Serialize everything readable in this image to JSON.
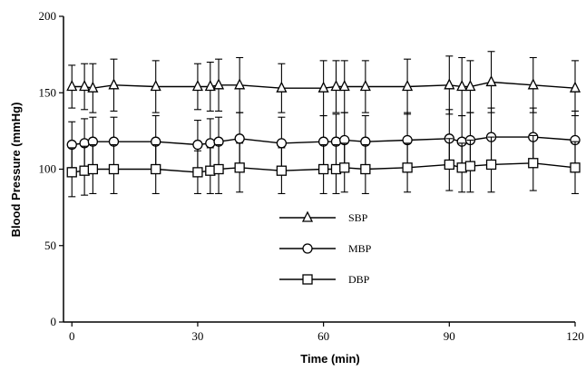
{
  "chart_data": {
    "type": "line",
    "xlabel": "Time (min)",
    "ylabel": "Blood Pressure (mmHg)",
    "xlim": [
      -2,
      120
    ],
    "ylim": [
      0,
      200
    ],
    "xticks": [
      0,
      30,
      60,
      90,
      120
    ],
    "yticks": [
      0,
      50,
      100,
      150,
      200
    ],
    "legend_position": "center",
    "series": [
      {
        "name": "SBP",
        "marker": "triangle",
        "x": [
          0,
          3,
          5,
          10,
          20,
          30,
          33,
          35,
          40,
          50,
          60,
          63,
          65,
          70,
          80,
          90,
          93,
          95,
          100,
          110,
          120
        ],
        "y": [
          154,
          154,
          153,
          155,
          154,
          154,
          154,
          155,
          155,
          153,
          153,
          154,
          154,
          154,
          154,
          155,
          154,
          154,
          157,
          155,
          153
        ],
        "err": [
          14,
          15,
          16,
          17,
          17,
          15,
          16,
          17,
          18,
          16,
          18,
          17,
          17,
          17,
          18,
          19,
          19,
          17,
          20,
          18,
          18
        ]
      },
      {
        "name": "MBP",
        "marker": "circle",
        "x": [
          0,
          3,
          5,
          10,
          20,
          30,
          33,
          35,
          40,
          50,
          60,
          63,
          65,
          70,
          80,
          90,
          93,
          95,
          100,
          110,
          120
        ],
        "y": [
          116,
          117,
          118,
          118,
          118,
          116,
          117,
          118,
          120,
          117,
          118,
          118,
          119,
          118,
          119,
          120,
          118,
          119,
          121,
          121,
          119
        ],
        "err": [
          15,
          16,
          16,
          16,
          17,
          16,
          16,
          16,
          17,
          17,
          17,
          18,
          18,
          17,
          18,
          19,
          17,
          18,
          19,
          19,
          19
        ]
      },
      {
        "name": "DBP",
        "marker": "square",
        "x": [
          0,
          3,
          5,
          10,
          20,
          30,
          33,
          35,
          40,
          50,
          60,
          63,
          65,
          70,
          80,
          90,
          93,
          95,
          100,
          110,
          120
        ],
        "y": [
          98,
          99,
          100,
          100,
          100,
          98,
          99,
          100,
          101,
          99,
          100,
          100,
          101,
          100,
          101,
          103,
          101,
          102,
          103,
          104,
          101
        ],
        "err": [
          16,
          16,
          16,
          16,
          16,
          14,
          15,
          16,
          16,
          15,
          16,
          16,
          16,
          16,
          16,
          17,
          16,
          17,
          18,
          18,
          17
        ]
      }
    ]
  }
}
